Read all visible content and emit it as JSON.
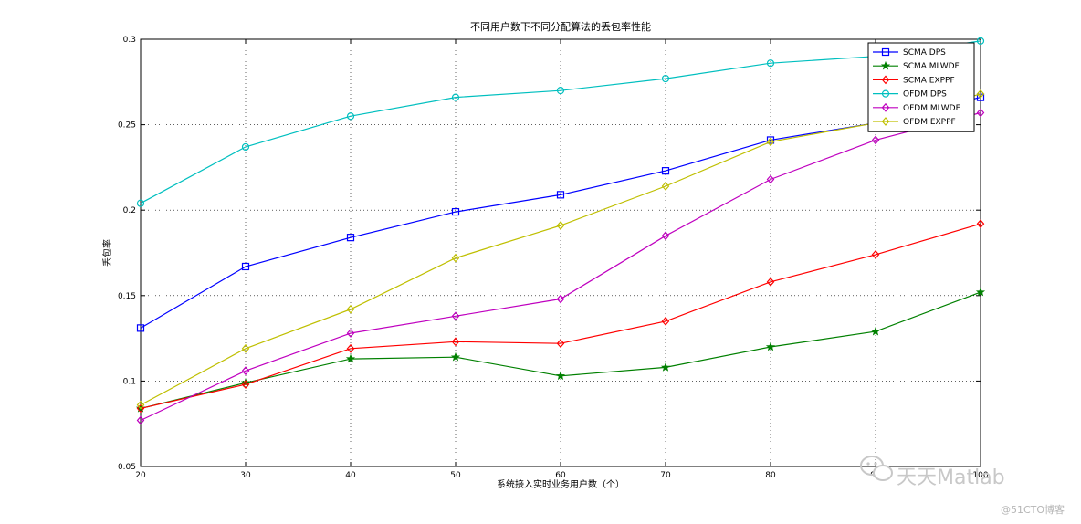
{
  "chart_data": {
    "type": "line",
    "title": "不同用户数下不同分配算法的丢包率性能",
    "xlabel": "系统接入实时业务用户数（个）",
    "ylabel": "丢包率",
    "x": [
      20,
      30,
      40,
      50,
      60,
      70,
      80,
      90,
      100
    ],
    "x_ticks": [
      "20",
      "30",
      "40",
      "50",
      "60",
      "70",
      "80",
      "90",
      "100"
    ],
    "y_ticks": [
      "0.05",
      "0.1",
      "0.15",
      "0.2",
      "0.25",
      "0.3"
    ],
    "xlim": [
      20,
      100
    ],
    "ylim": [
      0.05,
      0.3
    ],
    "grid": true,
    "legend_position": "top-right",
    "series": [
      {
        "name": "SCMA DPS",
        "color": "#0000ff",
        "marker": "square",
        "values": [
          0.131,
          0.167,
          0.184,
          0.199,
          0.209,
          0.223,
          0.241,
          0.251,
          0.266
        ]
      },
      {
        "name": "SCMA MLWDF",
        "color": "#008000",
        "marker": "star",
        "values": [
          0.084,
          0.099,
          0.113,
          0.114,
          0.103,
          0.108,
          0.12,
          0.129,
          0.152
        ]
      },
      {
        "name": "SCMA EXPPF",
        "color": "#ff0000",
        "marker": "diamond",
        "values": [
          0.084,
          0.098,
          0.119,
          0.123,
          0.122,
          0.135,
          0.158,
          0.174,
          0.192
        ]
      },
      {
        "name": "OFDM DPS",
        "color": "#00bfbf",
        "marker": "circle",
        "values": [
          0.204,
          0.237,
          0.255,
          0.266,
          0.27,
          0.277,
          0.286,
          0.29,
          0.299
        ]
      },
      {
        "name": "OFDM MLWDF",
        "color": "#bf00bf",
        "marker": "diamond",
        "values": [
          0.077,
          0.106,
          0.128,
          0.138,
          0.148,
          0.185,
          0.218,
          0.241,
          0.257
        ]
      },
      {
        "name": "OFDM EXPPF",
        "color": "#bfbf00",
        "marker": "diamond",
        "values": [
          0.086,
          0.119,
          0.142,
          0.172,
          0.191,
          0.214,
          0.24,
          0.251,
          0.268
        ]
      }
    ]
  },
  "watermark": {
    "main": "天天Matlab",
    "sub": "@51CTO博客",
    "icon": "wechat-icon"
  }
}
